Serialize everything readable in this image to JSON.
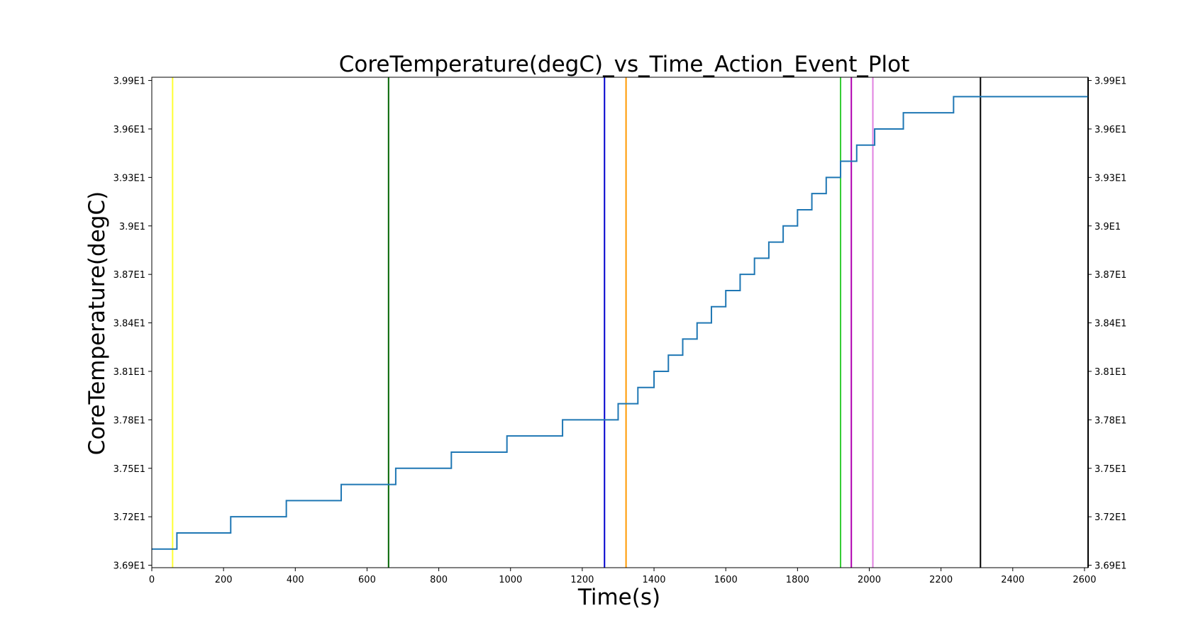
{
  "chart_data": {
    "type": "line",
    "title": "CoreTemperature(degC)_vs_Time_Action_Event_Plot",
    "xlabel": "Time(s)",
    "ylabel": "CoreTemperature(degC)",
    "xlim": [
      0,
      2610
    ],
    "ylim": [
      36.885,
      39.92
    ],
    "x_ticks": [
      0,
      200,
      400,
      600,
      800,
      1000,
      1200,
      1400,
      1600,
      1800,
      2000,
      2200,
      2400,
      2600
    ],
    "y_ticks": [
      {
        "value": 36.9,
        "label": "3.69E1"
      },
      {
        "value": 37.2,
        "label": "3.72E1"
      },
      {
        "value": 37.5,
        "label": "3.75E1"
      },
      {
        "value": 37.8,
        "label": "3.78E1"
      },
      {
        "value": 38.1,
        "label": "3.81E1"
      },
      {
        "value": 38.4,
        "label": "3.84E1"
      },
      {
        "value": 38.7,
        "label": "3.87E1"
      },
      {
        "value": 39.0,
        "label": "3.9E1"
      },
      {
        "value": 39.3,
        "label": "3.93E1"
      },
      {
        "value": 39.6,
        "label": "3.96E1"
      },
      {
        "value": 39.9,
        "label": "3.99E1"
      }
    ],
    "right_axis_ticks": true,
    "grid": false,
    "step_series": {
      "color": "#1f77b4",
      "x": [
        0,
        70,
        70,
        220,
        220,
        375,
        375,
        528,
        528,
        680,
        680,
        835,
        835,
        990,
        990,
        1145,
        1145,
        1300,
        1300,
        1355,
        1355,
        1400,
        1400,
        1440,
        1440,
        1480,
        1480,
        1520,
        1520,
        1560,
        1560,
        1600,
        1600,
        1640,
        1640,
        1680,
        1680,
        1720,
        1720,
        1760,
        1760,
        1800,
        1800,
        1840,
        1840,
        1880,
        1880,
        1920,
        1920,
        1965,
        1965,
        2015,
        2015,
        2095,
        2095,
        2235,
        2235,
        2610
      ],
      "y": [
        37.0,
        37.0,
        37.1,
        37.1,
        37.2,
        37.2,
        37.3,
        37.3,
        37.4,
        37.4,
        37.5,
        37.5,
        37.6,
        37.6,
        37.7,
        37.7,
        37.8,
        37.8,
        37.9,
        37.9,
        38.0,
        38.0,
        38.1,
        38.1,
        38.2,
        38.2,
        38.3,
        38.3,
        38.4,
        38.4,
        38.5,
        38.5,
        38.6,
        38.6,
        38.7,
        38.7,
        38.8,
        38.8,
        38.9,
        38.9,
        39.0,
        39.0,
        39.1,
        39.1,
        39.2,
        39.2,
        39.3,
        39.3,
        39.4,
        39.4,
        39.5,
        39.5,
        39.6,
        39.6,
        39.7,
        39.7,
        39.8,
        39.8
      ]
    },
    "event_lines": [
      {
        "x": 58,
        "color": "#ffff33"
      },
      {
        "x": 660,
        "color": "#006400"
      },
      {
        "x": 1262,
        "color": "#0000cd"
      },
      {
        "x": 1322,
        "color": "#ff9900"
      },
      {
        "x": 1920,
        "color": "#33cc33"
      },
      {
        "x": 1950,
        "color": "#b000b0"
      },
      {
        "x": 2010,
        "color": "#e080e0"
      },
      {
        "x": 2310,
        "color": "#000000"
      },
      {
        "x": 2610,
        "color": "#000000"
      }
    ]
  }
}
